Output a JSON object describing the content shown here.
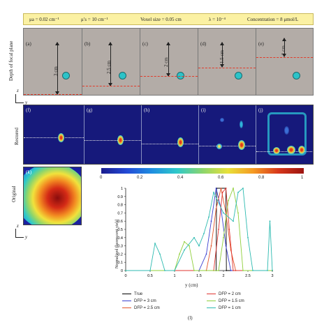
{
  "params": {
    "mu_a": "μa = 0.02 cm⁻¹",
    "mu_s": "μ′s = 10 cm⁻¹",
    "voxel": "Voxel size = 0.05 cm",
    "lambda": "λ = 10⁻⁴",
    "concentration": "Concentration = 8 μmol/L"
  },
  "row_top": {
    "ylabel": "Depth of focal plane",
    "axis_z": "z",
    "axis_y": "y",
    "panels": [
      {
        "letter": "(a)",
        "depth": "3 cm"
      },
      {
        "letter": "(b)",
        "depth": "2.5 cm"
      },
      {
        "letter": "(c)",
        "depth": "2 cm"
      },
      {
        "letter": "(d)",
        "depth": "1.5 cm"
      },
      {
        "letter": "(e)",
        "depth": "1 cm"
      }
    ]
  },
  "row_restored": {
    "ylabel": "Restored",
    "letters": [
      "(f)",
      "(g)",
      "(h)",
      "(i)",
      "(j)"
    ]
  },
  "original": {
    "letter": "(k)",
    "ylabel": "Original",
    "axis_z": "z",
    "axis_y": "y"
  },
  "colorbar": {
    "ticks": [
      "0",
      "0.2",
      "0.4",
      "0.6",
      "0.8",
      "1"
    ]
  },
  "chart_data": {
    "type": "line",
    "title": "",
    "xlabel": "y (cm)",
    "ylabel": "Normalized fluorescent yield",
    "panel_label": "(l)",
    "xlim": [
      0,
      3
    ],
    "ylim": [
      0,
      1
    ],
    "xticks": [
      "0",
      "0.5",
      "1",
      "1.5",
      "2",
      "2.5",
      "3"
    ],
    "yticks": [
      "0",
      "0.1",
      "0.2",
      "0.3",
      "0.4",
      "0.5",
      "0.6",
      "0.7",
      "0.8",
      "0.9",
      "1"
    ],
    "series": [
      {
        "name": "True",
        "color": "#000000",
        "x": [
          0,
          1.85,
          1.86,
          2.05,
          2.06,
          3
        ],
        "y": [
          0,
          0,
          1,
          1,
          0,
          0
        ]
      },
      {
        "name": "DFP = 3 cm",
        "color": "#3a3fd0",
        "x": [
          0,
          1.5,
          1.65,
          1.75,
          1.85,
          1.95,
          2.05,
          2.15,
          3
        ],
        "y": [
          0,
          0,
          0.2,
          0.6,
          1,
          0.75,
          0.3,
          0,
          0
        ]
      },
      {
        "name": "DFP = 2.5 cm",
        "color": "#e2552a",
        "x": [
          0,
          1.65,
          1.75,
          1.85,
          1.95,
          2.05,
          2.15,
          2.25,
          3
        ],
        "y": [
          0,
          0,
          0.3,
          0.75,
          1,
          0.7,
          0.25,
          0,
          0
        ]
      },
      {
        "name": "DFP = 2 cm",
        "color": "#e0342f",
        "x": [
          0,
          1.8,
          1.9,
          1.98,
          2.05,
          2.12,
          2.2,
          3
        ],
        "y": [
          0,
          0,
          0.5,
          0.95,
          1,
          0.5,
          0,
          0
        ]
      },
      {
        "name": "DFP = 1.5 cm",
        "color": "#8fcf3a",
        "x": [
          0,
          1.0,
          1.1,
          1.2,
          1.3,
          1.4,
          1.9,
          2.0,
          2.1,
          2.2,
          2.3,
          2.4,
          3
        ],
        "y": [
          0,
          0,
          0.2,
          0.35,
          0.3,
          0,
          0,
          0.4,
          0.85,
          1,
          0.7,
          0,
          0
        ]
      },
      {
        "name": "DFP = 1 cm",
        "color": "#2cbab0",
        "x": [
          0,
          0.5,
          0.6,
          0.7,
          0.8,
          1.0,
          1.2,
          1.4,
          1.5,
          1.6,
          1.7,
          1.8,
          2.0,
          2.2,
          2.3,
          2.4,
          2.5,
          2.6,
          2.9,
          2.95,
          3.0
        ],
        "y": [
          0,
          0,
          0.33,
          0.2,
          0,
          0,
          0.25,
          0.4,
          0.3,
          0.45,
          0.65,
          0.95,
          0.7,
          0.6,
          0.95,
          1,
          0.4,
          0,
          0,
          0.6,
          0
        ]
      }
    ]
  }
}
